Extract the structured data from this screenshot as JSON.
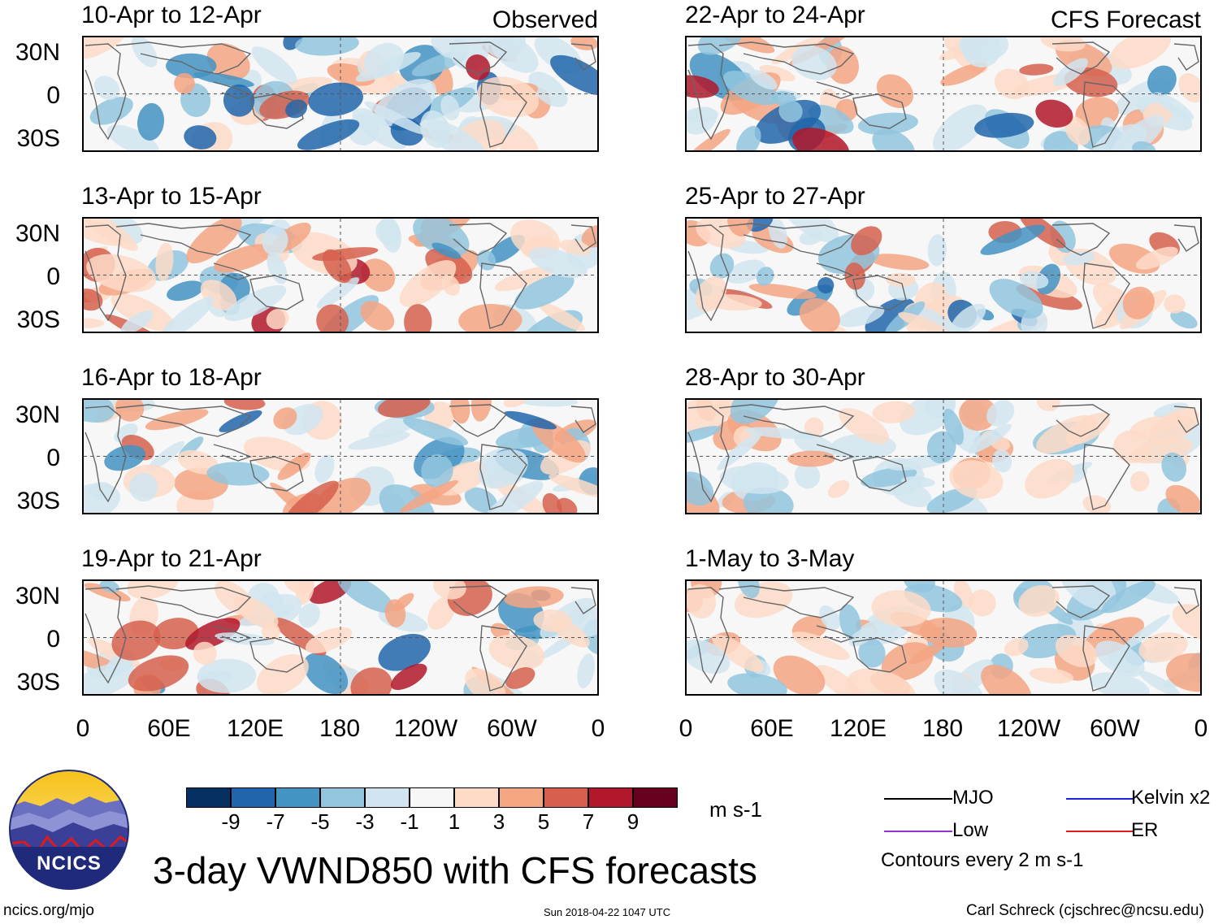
{
  "panels": [
    {
      "title": "10-Apr to 12-Apr",
      "tag": "Observed"
    },
    {
      "title": "13-Apr to 15-Apr",
      "tag": ""
    },
    {
      "title": "16-Apr to 18-Apr",
      "tag": ""
    },
    {
      "title": "19-Apr to 21-Apr",
      "tag": ""
    },
    {
      "title": "22-Apr to 24-Apr",
      "tag": "CFS Forecast"
    },
    {
      "title": "25-Apr to 27-Apr",
      "tag": ""
    },
    {
      "title": "28-Apr to 30-Apr",
      "tag": ""
    },
    {
      "title": "1-May to 3-May",
      "tag": ""
    }
  ],
  "lat_labels": [
    "30N",
    "0",
    "30S"
  ],
  "lon_labels": [
    "0",
    "60E",
    "120E",
    "180",
    "120W",
    "60W",
    "0"
  ],
  "colorbar": {
    "colors": [
      "#053061",
      "#2166ac",
      "#4393c3",
      "#92c5de",
      "#d1e5f0",
      "#f7f7f7",
      "#fddbc7",
      "#f4a582",
      "#d6604d",
      "#b2182b",
      "#67001f"
    ],
    "labels": [
      "-9",
      "-7",
      "-5",
      "-3",
      "-1",
      "1",
      "3",
      "5",
      "7",
      "9"
    ],
    "units": "m s-1"
  },
  "legend": {
    "items": [
      {
        "label": "MJO",
        "color": "#000000"
      },
      {
        "label": "Low",
        "color": "#9932cc"
      },
      {
        "label": "Kelvin x2",
        "color": "#1f1fd6"
      },
      {
        "label": "ER",
        "color": "#e0191b"
      }
    ],
    "contours_note": "Contours every 2 m s-1"
  },
  "logo_text": "NCICS",
  "main_title": "3-day VWND850 with CFS forecasts",
  "footer": {
    "url": "ncics.org/mjo",
    "timestamp": "Sun 2018-04-22 1047 UTC",
    "author": "Carl Schreck (cjschrec@ncsu.edu)"
  }
}
